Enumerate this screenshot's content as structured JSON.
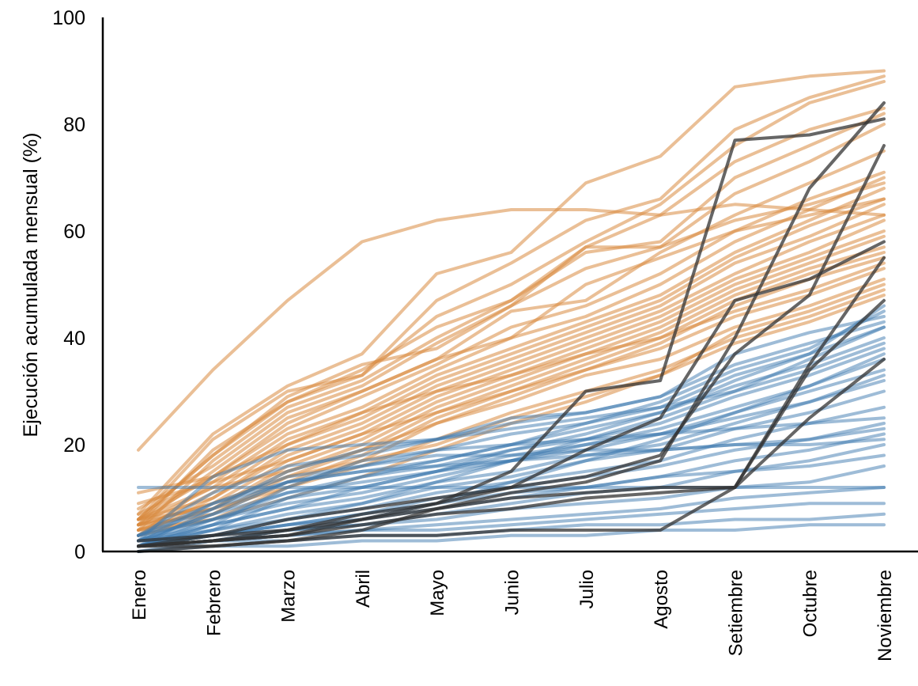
{
  "chart_data": {
    "type": "line",
    "title": "",
    "xlabel": "",
    "ylabel": "Ejecución acumulada mensual (%)",
    "ylim": [
      0,
      100
    ],
    "yticks": [
      0,
      20,
      40,
      60,
      80,
      100
    ],
    "categories": [
      "Enero",
      "Febrero",
      "Marzo",
      "Abril",
      "Mayo",
      "Junio",
      "Julio",
      "Agosto",
      "Setiembre",
      "Octubre",
      "Noviembre"
    ],
    "grid": false,
    "legend": "none",
    "colors": {
      "orange": "#d98a40",
      "blue": "#3d7ab0",
      "dark": "#333333"
    },
    "orange_series": [
      [
        19,
        34,
        47,
        58,
        62,
        64,
        64,
        63,
        65,
        64,
        63
      ],
      [
        7,
        22,
        31,
        37,
        52,
        56,
        69,
        74,
        87,
        89,
        90
      ],
      [
        6,
        21,
        30,
        33,
        47,
        54,
        62,
        66,
        79,
        85,
        89
      ],
      [
        5,
        19,
        28,
        33,
        44,
        50,
        58,
        65,
        76,
        84,
        88
      ],
      [
        6,
        18,
        28,
        34,
        42,
        47,
        57,
        63,
        73,
        79,
        83
      ],
      [
        4,
        17,
        27,
        32,
        40,
        47,
        56,
        58,
        70,
        76,
        82
      ],
      [
        8,
        16,
        26,
        31,
        39,
        46,
        53,
        57,
        67,
        73,
        80
      ],
      [
        5,
        15,
        25,
        30,
        36,
        45,
        47,
        56,
        63,
        69,
        75
      ],
      [
        6,
        14,
        23,
        29,
        35,
        42,
        46,
        52,
        60,
        66,
        71
      ],
      [
        3,
        13,
        22,
        27,
        34,
        40,
        44,
        50,
        58,
        64,
        70
      ],
      [
        5,
        12,
        21,
        26,
        33,
        38,
        43,
        48,
        56,
        62,
        68
      ],
      [
        4,
        11,
        20,
        25,
        32,
        37,
        42,
        47,
        55,
        61,
        66
      ],
      [
        6,
        10,
        19,
        24,
        31,
        36,
        41,
        46,
        54,
        59,
        65
      ],
      [
        3,
        10,
        18,
        23,
        30,
        35,
        40,
        45,
        52,
        58,
        63
      ],
      [
        5,
        9,
        17,
        22,
        29,
        34,
        39,
        44,
        51,
        56,
        62
      ],
      [
        4,
        8,
        16,
        21,
        28,
        33,
        38,
        43,
        50,
        55,
        60
      ],
      [
        6,
        8,
        15,
        20,
        27,
        32,
        37,
        42,
        49,
        54,
        59
      ],
      [
        3,
        7,
        14,
        19,
        26,
        31,
        36,
        41,
        48,
        53,
        57
      ],
      [
        5,
        7,
        13,
        18,
        25,
        30,
        35,
        40,
        47,
        52,
        56
      ],
      [
        4,
        6,
        12,
        17,
        24,
        29,
        34,
        39,
        46,
        51,
        55
      ],
      [
        11,
        14,
        20,
        26,
        30,
        33,
        37,
        40,
        45,
        49,
        54
      ],
      [
        9,
        13,
        17,
        22,
        26,
        30,
        34,
        38,
        44,
        48,
        53
      ],
      [
        6,
        12,
        15,
        19,
        24,
        28,
        33,
        36,
        42,
        46,
        51
      ],
      [
        4,
        8,
        12,
        16,
        21,
        26,
        30,
        34,
        40,
        44,
        49
      ],
      [
        3,
        6,
        10,
        14,
        19,
        24,
        28,
        33,
        39,
        43,
        48
      ],
      [
        5,
        9,
        14,
        17,
        20,
        25,
        29,
        33,
        41,
        45,
        50
      ],
      [
        7,
        14,
        24,
        30,
        36,
        40,
        50,
        55,
        60,
        63,
        66
      ],
      [
        6,
        18,
        29,
        35,
        38,
        46,
        57,
        57,
        62,
        65,
        69
      ]
    ],
    "blue_series": [
      [
        12,
        12,
        12,
        12,
        12,
        12,
        12,
        12,
        12,
        12,
        12
      ],
      [
        2,
        14,
        19,
        20,
        21,
        25,
        26,
        29,
        37,
        41,
        44
      ],
      [
        3,
        11,
        16,
        18,
        21,
        24,
        26,
        29,
        35,
        39,
        43
      ],
      [
        2,
        9,
        14,
        16,
        19,
        22,
        24,
        27,
        33,
        37,
        42
      ],
      [
        1,
        8,
        13,
        15,
        17,
        20,
        23,
        26,
        31,
        35,
        40
      ],
      [
        2,
        7,
        11,
        14,
        16,
        19,
        21,
        24,
        29,
        33,
        38
      ],
      [
        1,
        6,
        10,
        12,
        15,
        18,
        20,
        23,
        27,
        31,
        36
      ],
      [
        3,
        6,
        9,
        11,
        14,
        17,
        19,
        22,
        26,
        30,
        34
      ],
      [
        1,
        5,
        8,
        10,
        13,
        15,
        18,
        20,
        24,
        28,
        32
      ],
      [
        2,
        4,
        7,
        9,
        12,
        14,
        17,
        19,
        23,
        26,
        30
      ],
      [
        1,
        4,
        6,
        8,
        11,
        13,
        15,
        17,
        21,
        24,
        27
      ],
      [
        2,
        3,
        5,
        7,
        10,
        12,
        14,
        16,
        19,
        21,
        24
      ],
      [
        1,
        3,
        5,
        6,
        8,
        10,
        12,
        14,
        17,
        19,
        22
      ],
      [
        1,
        2,
        4,
        5,
        7,
        9,
        11,
        12,
        15,
        17,
        20
      ],
      [
        2,
        3,
        4,
        5,
        6,
        8,
        9,
        10,
        12,
        13,
        16
      ],
      [
        1,
        2,
        3,
        4,
        5,
        6,
        7,
        8,
        10,
        11,
        12
      ],
      [
        1,
        2,
        3,
        4,
        4,
        5,
        6,
        7,
        8,
        9,
        9
      ],
      [
        1,
        2,
        2,
        3,
        3,
        4,
        5,
        5,
        6,
        6,
        7
      ],
      [
        0,
        1,
        1,
        2,
        2,
        3,
        3,
        4,
        4,
        5,
        5
      ],
      [
        2,
        5,
        8,
        12,
        15,
        19,
        22,
        26,
        32,
        37,
        46
      ],
      [
        1,
        4,
        10,
        14,
        17,
        20,
        24,
        28,
        34,
        38,
        45
      ],
      [
        3,
        8,
        15,
        19,
        21,
        23,
        25,
        27,
        30,
        36,
        42
      ],
      [
        1,
        3,
        6,
        9,
        13,
        17,
        21,
        25,
        30,
        34,
        39
      ],
      [
        2,
        6,
        11,
        13,
        15,
        17,
        20,
        22,
        25,
        28,
        33
      ],
      [
        1,
        5,
        12,
        17,
        19,
        20,
        21,
        22,
        23,
        24,
        25
      ],
      [
        2,
        7,
        13,
        16,
        18,
        18,
        19,
        19,
        20,
        20,
        21
      ],
      [
        1,
        3,
        5,
        7,
        9,
        11,
        12,
        14,
        15,
        16,
        18
      ],
      [
        0,
        2,
        4,
        6,
        9,
        13,
        17,
        21,
        26,
        31,
        37
      ],
      [
        3,
        9,
        13,
        15,
        16,
        17,
        18,
        19,
        20,
        21,
        23
      ]
    ],
    "dark_series": [
      [
        1,
        3,
        6,
        8,
        10,
        12,
        19,
        25,
        47,
        51,
        58
      ],
      [
        1,
        2,
        4,
        7,
        9,
        15,
        30,
        32,
        77,
        78,
        81
      ],
      [
        1,
        1,
        2,
        3,
        3,
        4,
        4,
        4,
        12,
        25,
        36
      ],
      [
        1,
        2,
        3,
        5,
        7,
        8,
        10,
        11,
        12,
        35,
        55
      ],
      [
        0,
        1,
        2,
        4,
        8,
        11,
        13,
        17,
        40,
        68,
        84
      ],
      [
        1,
        2,
        3,
        6,
        9,
        12,
        14,
        18,
        37,
        48,
        76
      ],
      [
        2,
        3,
        4,
        6,
        8,
        10,
        11,
        12,
        12,
        34,
        47
      ]
    ]
  }
}
